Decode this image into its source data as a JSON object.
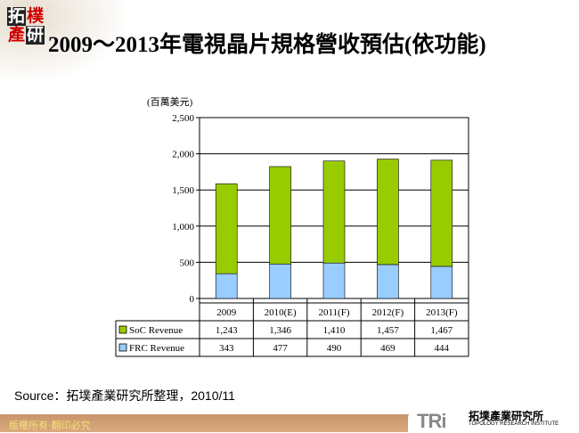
{
  "logo": {
    "chars": [
      "拓",
      "樸",
      "產",
      "研"
    ]
  },
  "title": "2009～2013年電視晶片規格營收預估(依功能)",
  "source": "Source：拓墣產業研究所整理，2010/11",
  "footer": {
    "copyright": "版權所有‧翻印必究",
    "org_cn": "拓墣產業研究所",
    "org_en": "TOPOLOGY RESEARCH INSTITUTE",
    "org_mark": "TRi"
  },
  "chart_data": {
    "type": "bar",
    "stacked": true,
    "unit_label": "(百萬美元)",
    "categories": [
      "2009",
      "2010(E)",
      "2011(F)",
      "2012(F)",
      "2013(F)"
    ],
    "series": [
      {
        "name": "FRC Revenue",
        "values": [
          343,
          477,
          490,
          469,
          444
        ],
        "color": "#99ccff"
      },
      {
        "name": "SoC Revenue",
        "values": [
          1243,
          1346,
          1410,
          1457,
          1467
        ],
        "color": "#99cc00"
      }
    ],
    "table_rows": [
      {
        "name": "SoC Revenue",
        "cells": [
          "1,243",
          "1,346",
          "1,410",
          "1,457",
          "1,467"
        ]
      },
      {
        "name": "FRC Revenue",
        "cells": [
          "343",
          "477",
          "490",
          "469",
          "444"
        ]
      }
    ],
    "yticks": [
      "0",
      "500",
      "1,000",
      "1,500",
      "2,000",
      "2,500"
    ],
    "ylim": [
      0,
      2500
    ],
    "grid": true,
    "legend": "data-table"
  }
}
